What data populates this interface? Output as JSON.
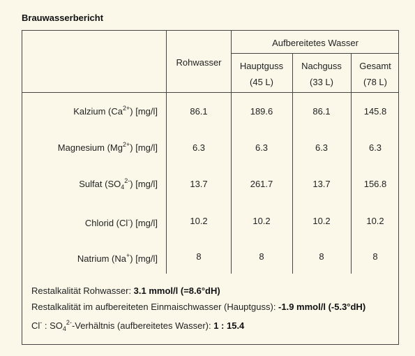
{
  "title": "Brauwasserbericht",
  "headers": {
    "raw": "Rohwasser",
    "treated": "Aufbereitetes Wasser",
    "hauptguss": "Hauptguss",
    "hauptguss_vol": "(45 L)",
    "nachguss": "Nachguss",
    "nachguss_vol": "(33 L)",
    "gesamt": "Gesamt",
    "gesamt_vol": "(78 L)"
  },
  "rows": [
    {
      "name": "Kalzium (Ca",
      "sup": "2+",
      "sub": "",
      "sup2": "",
      "unit": ") [mg/l]",
      "raw": "86.1",
      "haupt": "189.6",
      "nach": "86.1",
      "gesamt": "145.8"
    },
    {
      "name": "Magnesium (Mg",
      "sup": "2+",
      "sub": "",
      "sup2": "",
      "unit": ") [mg/l]",
      "raw": "6.3",
      "haupt": "6.3",
      "nach": "6.3",
      "gesamt": "6.3"
    },
    {
      "name": "Sulfat (SO",
      "sup": "",
      "sub": "4",
      "sup2": "2-",
      "unit": ") [mg/l]",
      "raw": "13.7",
      "haupt": "261.7",
      "nach": "13.7",
      "gesamt": "156.8"
    },
    {
      "name": "Chlorid (Cl",
      "sup": "-",
      "sub": "",
      "sup2": "",
      "unit": ") [mg/l]",
      "raw": "10.2",
      "haupt": "10.2",
      "nach": "10.2",
      "gesamt": "10.2"
    },
    {
      "name": "Natrium (Na",
      "sup": "+",
      "sub": "",
      "sup2": "",
      "unit": ") [mg/l]",
      "raw": "8",
      "haupt": "8",
      "nach": "8",
      "gesamt": "8"
    }
  ],
  "summary": {
    "line1_label": "Restalkalität Rohwasser: ",
    "line1_value": "3.1 mmol/l (=8.6°dH)",
    "line2_label": "Restalkalität im aufbereiteten Einmaischwasser (Hauptguss): ",
    "line2_value": "-1.9 mmol/l (-5.3°dH)",
    "line3_cl": "Cl",
    "line3_cl_sup": "-",
    "line3_mid": " : SO",
    "line3_sub": "4",
    "line3_sup": "2-",
    "line3_label": "-Verhältnis (aufbereitetes Wasser): ",
    "line3_value": "1 : 15.4"
  }
}
